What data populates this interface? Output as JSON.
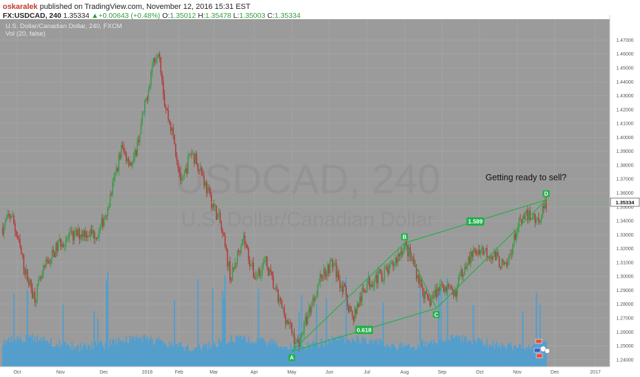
{
  "header": {
    "author": "oskaralek",
    "published_text": " published on TradingView.com, November 12, 2016 15:31 EST",
    "symbol": "FX:USDCAD, 240",
    "last": "1.35334",
    "arrow": "▲",
    "change": "+0.00643 (+0.48%)",
    "open_label": "O:",
    "open": "1.35012",
    "high_label": "H:",
    "high": "1.35478",
    "low_label": "L:",
    "low": "1.35003",
    "close_label": "C:",
    "close": "1.35334"
  },
  "colors": {
    "plot_bg": "#9b9b9b",
    "up_candle": "#3c9a46",
    "down_candle": "#b33a3a",
    "volume": "#4a9fd4",
    "pattern": "#22b04a",
    "price_line": "#6fbf6f",
    "watermark": "#8c8c8c"
  },
  "chart_data": {
    "type": "candlestick",
    "title": "U.S. Dollar/Canadian Dollar, 240, FXCM",
    "indicator": "Vol (20, false)",
    "watermark_symbol": "USDCAD, 240",
    "watermark_name": "U.S. Dollar/Canadian Dollar",
    "y_axis": {
      "min": 1.235,
      "max": 1.485,
      "ticks": [
        "1.47000",
        "1.46000",
        "1.45000",
        "1.44000",
        "1.43000",
        "1.42000",
        "1.41000",
        "1.40000",
        "1.39000",
        "1.38000",
        "1.37000",
        "1.36000",
        "1.35000",
        "1.34000",
        "1.33000",
        "1.32000",
        "1.31000",
        "1.30000",
        "1.29000",
        "1.28000",
        "1.27000",
        "1.26000",
        "1.25000",
        "1.24000"
      ],
      "last_price_label": "1.35334",
      "last_price": 1.35334
    },
    "x_axis": {
      "ticks": [
        "Oct",
        "Nov",
        "Dec",
        "2016",
        "Feb",
        "Mar",
        "Apr",
        "May",
        "Jun",
        "Jul",
        "Aug",
        "Sep",
        "Oct",
        "Nov",
        "Dec",
        "2017"
      ],
      "positions": [
        0.5,
        2.0,
        3.5,
        5.0,
        6.1,
        7.3,
        8.7,
        10.0,
        11.3,
        12.6,
        13.9,
        15.2,
        16.5,
        17.8,
        19.1,
        20.5
      ]
    },
    "price_path": [
      {
        "t": 0.0,
        "p": 1.335
      },
      {
        "t": 0.3,
        "p": 1.345
      },
      {
        "t": 0.8,
        "p": 1.302
      },
      {
        "t": 1.1,
        "p": 1.285
      },
      {
        "t": 1.5,
        "p": 1.308
      },
      {
        "t": 2.0,
        "p": 1.325
      },
      {
        "t": 2.8,
        "p": 1.332
      },
      {
        "t": 3.3,
        "p": 1.33
      },
      {
        "t": 3.7,
        "p": 1.355
      },
      {
        "t": 4.1,
        "p": 1.392
      },
      {
        "t": 4.5,
        "p": 1.38
      },
      {
        "t": 4.9,
        "p": 1.42
      },
      {
        "t": 5.2,
        "p": 1.455
      },
      {
        "t": 5.4,
        "p": 1.465
      },
      {
        "t": 5.6,
        "p": 1.425
      },
      {
        "t": 5.9,
        "p": 1.4
      },
      {
        "t": 6.2,
        "p": 1.365
      },
      {
        "t": 6.5,
        "p": 1.39
      },
      {
        "t": 6.8,
        "p": 1.38
      },
      {
        "t": 7.1,
        "p": 1.36
      },
      {
        "t": 7.5,
        "p": 1.34
      },
      {
        "t": 7.9,
        "p": 1.298
      },
      {
        "t": 8.3,
        "p": 1.33
      },
      {
        "t": 8.7,
        "p": 1.3
      },
      {
        "t": 9.1,
        "p": 1.31
      },
      {
        "t": 9.5,
        "p": 1.285
      },
      {
        "t": 9.9,
        "p": 1.265
      },
      {
        "t": 10.2,
        "p": 1.25
      },
      {
        "t": 10.6,
        "p": 1.275
      },
      {
        "t": 11.0,
        "p": 1.3
      },
      {
        "t": 11.4,
        "p": 1.31
      },
      {
        "t": 11.8,
        "p": 1.29
      },
      {
        "t": 12.1,
        "p": 1.27
      },
      {
        "t": 12.6,
        "p": 1.295
      },
      {
        "t": 13.0,
        "p": 1.3
      },
      {
        "t": 13.4,
        "p": 1.305
      },
      {
        "t": 13.9,
        "p": 1.323
      },
      {
        "t": 14.2,
        "p": 1.31
      },
      {
        "t": 14.7,
        "p": 1.28
      },
      {
        "t": 15.2,
        "p": 1.295
      },
      {
        "t": 15.6,
        "p": 1.285
      },
      {
        "t": 16.0,
        "p": 1.31
      },
      {
        "t": 16.5,
        "p": 1.32
      },
      {
        "t": 17.0,
        "p": 1.315
      },
      {
        "t": 17.4,
        "p": 1.305
      },
      {
        "t": 17.8,
        "p": 1.335
      },
      {
        "t": 18.2,
        "p": 1.345
      },
      {
        "t": 18.5,
        "p": 1.34
      },
      {
        "t": 18.8,
        "p": 1.353
      }
    ],
    "pattern": {
      "points": [
        {
          "label": "A",
          "t": 10.0,
          "p": 1.246
        },
        {
          "label": "B",
          "t": 13.9,
          "p": 1.324
        },
        {
          "label": "C",
          "t": 15.0,
          "p": 1.277
        },
        {
          "label": "D",
          "t": 18.8,
          "p": 1.355
        }
      ],
      "ratio_AC": "0.618",
      "ratio_BD": "1.589"
    },
    "annotation": "Getting ready to sell?",
    "time_range": [
      0,
      21
    ],
    "grid": true
  }
}
